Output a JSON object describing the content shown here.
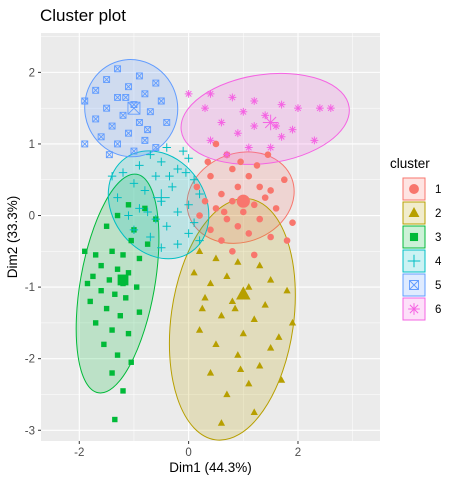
{
  "chart_data": {
    "type": "scatter",
    "title": "Cluster plot",
    "xlabel": "Dim1 (44.3%)",
    "ylabel": "Dim2 (33.3%)",
    "xlim": [
      -2.7,
      3.5
    ],
    "ylim": [
      -3.15,
      2.55
    ],
    "x_ticks": [
      -2,
      0,
      2
    ],
    "y_ticks": [
      2,
      1,
      0,
      -1,
      -2,
      -3
    ],
    "grid": true,
    "legend": {
      "title": "cluster",
      "position": "right"
    },
    "series": [
      {
        "name": "1",
        "marker": "circle",
        "color": "#F8766D",
        "fill": "#F8766D",
        "ellipse": {
          "cx": 0.95,
          "cy": 0.25,
          "rx": 1.0,
          "ry": 0.62,
          "angle": -20
        },
        "center": [
          1.0,
          0.2
        ],
        "points": [
          [
            0.5,
            1.0
          ],
          [
            0.7,
            0.85
          ],
          [
            0.8,
            0.65
          ],
          [
            0.4,
            0.55
          ],
          [
            1.1,
            0.55
          ],
          [
            0.9,
            0.4
          ],
          [
            1.3,
            0.4
          ],
          [
            1.5,
            0.35
          ],
          [
            0.6,
            0.3
          ],
          [
            1.4,
            0.25
          ],
          [
            0.3,
            0.2
          ],
          [
            0.8,
            0.2
          ],
          [
            1.2,
            0.15
          ],
          [
            1.6,
            0.1
          ],
          [
            0.5,
            0.1
          ],
          [
            1.0,
            0.05
          ],
          [
            0.2,
            0.0
          ],
          [
            0.7,
            -0.05
          ],
          [
            1.3,
            -0.05
          ],
          [
            1.9,
            -0.1
          ],
          [
            0.9,
            -0.15
          ],
          [
            0.4,
            -0.2
          ],
          [
            1.1,
            -0.25
          ],
          [
            1.5,
            -0.3
          ],
          [
            0.6,
            -0.35
          ],
          [
            1.8,
            -0.35
          ],
          [
            0.8,
            -0.5
          ],
          [
            1.2,
            -0.55
          ],
          [
            1.45,
            0.85
          ],
          [
            0.35,
            0.75
          ],
          [
            1.75,
            0.5
          ],
          [
            0.15,
            0.4
          ],
          [
            0.95,
            0.75
          ],
          [
            1.25,
            0.7
          ],
          [
            0.65,
            0.05
          ]
        ]
      },
      {
        "name": "2",
        "marker": "triangle",
        "color": "#B79F00",
        "fill": "#B79F00",
        "ellipse": {
          "cx": 0.8,
          "cy": -1.45,
          "rx": 1.12,
          "ry": 1.7,
          "angle": 8
        },
        "center": [
          1.0,
          -1.1
        ],
        "points": [
          [
            0.2,
            -0.5
          ],
          [
            0.5,
            -0.6
          ],
          [
            0.9,
            -0.65
          ],
          [
            1.3,
            -0.7
          ],
          [
            0.1,
            -0.8
          ],
          [
            0.7,
            -0.85
          ],
          [
            1.5,
            -0.9
          ],
          [
            0.4,
            -0.95
          ],
          [
            1.1,
            -1.0
          ],
          [
            1.8,
            -1.05
          ],
          [
            0.3,
            -1.15
          ],
          [
            0.8,
            -1.2
          ],
          [
            1.4,
            -1.25
          ],
          [
            0.6,
            -1.4
          ],
          [
            1.2,
            -1.45
          ],
          [
            1.9,
            -1.5
          ],
          [
            0.2,
            -1.6
          ],
          [
            1.0,
            -1.65
          ],
          [
            0.5,
            -1.8
          ],
          [
            1.5,
            -1.85
          ],
          [
            0.9,
            -1.95
          ],
          [
            1.3,
            -2.1
          ],
          [
            0.4,
            -2.2
          ],
          [
            1.1,
            -2.35
          ],
          [
            0.7,
            -2.5
          ],
          [
            1.7,
            -2.3
          ],
          [
            1.2,
            -2.75
          ],
          [
            0.6,
            -2.9
          ],
          [
            0.85,
            -1.3
          ],
          [
            1.65,
            -1.7
          ],
          [
            0.25,
            -1.3
          ],
          [
            0.95,
            -2.15
          ]
        ]
      },
      {
        "name": "3",
        "marker": "square",
        "color": "#00BA38",
        "fill": "#00BA38",
        "ellipse": {
          "cx": -1.3,
          "cy": -0.95,
          "rx": 0.68,
          "ry": 1.55,
          "angle": 10
        },
        "center": [
          -1.2,
          -0.9
        ],
        "points": [
          [
            -1.1,
            0.15
          ],
          [
            -0.8,
            0.1
          ],
          [
            -1.3,
            0.0
          ],
          [
            -0.6,
            -0.05
          ],
          [
            -1.5,
            -0.15
          ],
          [
            -1.0,
            -0.2
          ],
          [
            -1.9,
            -0.5
          ],
          [
            -1.7,
            -0.55
          ],
          [
            -1.4,
            -0.5
          ],
          [
            -1.2,
            -0.55
          ],
          [
            -0.9,
            -0.6
          ],
          [
            -1.6,
            -0.7
          ],
          [
            -1.3,
            -0.75
          ],
          [
            -1.1,
            -0.8
          ],
          [
            -1.75,
            -0.85
          ],
          [
            -1.45,
            -0.9
          ],
          [
            -1.2,
            -0.95
          ],
          [
            -0.95,
            -1.0
          ],
          [
            -1.6,
            -1.05
          ],
          [
            -1.35,
            -1.1
          ],
          [
            -1.15,
            -1.15
          ],
          [
            -1.8,
            -1.2
          ],
          [
            -1.5,
            -1.3
          ],
          [
            -1.25,
            -1.4
          ],
          [
            -1.7,
            -1.5
          ],
          [
            -1.4,
            -1.6
          ],
          [
            -1.1,
            -1.65
          ],
          [
            -1.55,
            -1.8
          ],
          [
            -1.3,
            -1.95
          ],
          [
            -1.05,
            -2.05
          ],
          [
            -1.4,
            -2.2
          ],
          [
            -1.2,
            -2.45
          ],
          [
            -1.35,
            -2.85
          ],
          [
            -0.75,
            -0.4
          ],
          [
            -1.05,
            -0.35
          ],
          [
            -1.85,
            -0.95
          ],
          [
            -0.9,
            -1.35
          ]
        ]
      },
      {
        "name": "4",
        "marker": "plus",
        "color": "#00BFC4",
        "fill": "#00BFC4",
        "ellipse": {
          "cx": -0.55,
          "cy": 0.15,
          "rx": 0.85,
          "ry": 0.8,
          "angle": -35
        },
        "center": [
          -0.5,
          0.25
        ],
        "points": [
          [
            -0.4,
            0.95
          ],
          [
            -0.1,
            0.9
          ],
          [
            -0.7,
            0.85
          ],
          [
            0.0,
            0.8
          ],
          [
            -0.5,
            0.75
          ],
          [
            -0.9,
            0.7
          ],
          [
            -0.2,
            0.65
          ],
          [
            -1.2,
            0.6
          ],
          [
            -0.6,
            0.55
          ],
          [
            0.1,
            0.5
          ],
          [
            -1.0,
            0.45
          ],
          [
            -0.3,
            0.4
          ],
          [
            -0.8,
            0.35
          ],
          [
            0.2,
            0.3
          ],
          [
            -1.3,
            0.25
          ],
          [
            -0.5,
            0.2
          ],
          [
            0.0,
            0.15
          ],
          [
            -0.9,
            0.1
          ],
          [
            -0.2,
            0.05
          ],
          [
            -1.1,
            0.0
          ],
          [
            -0.6,
            -0.05
          ],
          [
            0.1,
            -0.1
          ],
          [
            -0.4,
            -0.15
          ],
          [
            -1.0,
            -0.2
          ],
          [
            0.0,
            -0.25
          ],
          [
            -0.7,
            -0.3
          ],
          [
            -0.2,
            -0.4
          ],
          [
            -0.5,
            -0.45
          ],
          [
            0.2,
            -0.35
          ],
          [
            -1.4,
            0.55
          ],
          [
            -0.05,
            0.6
          ],
          [
            -0.75,
            0.05
          ],
          [
            -0.35,
            0.55
          ]
        ]
      },
      {
        "name": "5",
        "marker": "squarecross",
        "color": "#619CFF",
        "fill": "#619CFF",
        "ellipse": {
          "cx": -1.05,
          "cy": 1.5,
          "rx": 0.85,
          "ry": 0.68,
          "angle": -10
        },
        "center": [
          -1.0,
          1.5
        ],
        "points": [
          [
            -1.3,
            2.05
          ],
          [
            -0.9,
            1.95
          ],
          [
            -1.5,
            1.9
          ],
          [
            -0.6,
            1.85
          ],
          [
            -1.1,
            1.8
          ],
          [
            -1.7,
            1.75
          ],
          [
            -0.8,
            1.7
          ],
          [
            -1.3,
            1.65
          ],
          [
            -1.9,
            1.6
          ],
          [
            -1.0,
            1.55
          ],
          [
            -0.5,
            1.6
          ],
          [
            -1.5,
            1.5
          ],
          [
            -0.7,
            1.45
          ],
          [
            -1.2,
            1.4
          ],
          [
            -1.7,
            1.35
          ],
          [
            -0.9,
            1.3
          ],
          [
            -1.4,
            1.25
          ],
          [
            -0.4,
            1.3
          ],
          [
            -1.1,
            1.15
          ],
          [
            -1.6,
            1.1
          ],
          [
            -0.8,
            1.05
          ],
          [
            -1.3,
            1.0
          ],
          [
            -1.9,
            1.0
          ],
          [
            -1.0,
            0.9
          ],
          [
            -0.6,
            0.95
          ],
          [
            -1.45,
            0.85
          ],
          [
            -1.15,
            1.65
          ],
          [
            -0.75,
            1.2
          ]
        ]
      },
      {
        "name": "6",
        "marker": "star",
        "color": "#F564E3",
        "fill": "#F564E3",
        "ellipse": {
          "cx": 1.4,
          "cy": 1.35,
          "rx": 1.55,
          "ry": 0.62,
          "angle": -8
        },
        "center": [
          1.5,
          1.3
        ],
        "points": [
          [
            0.0,
            1.7
          ],
          [
            0.4,
            1.7
          ],
          [
            0.8,
            1.65
          ],
          [
            1.2,
            1.6
          ],
          [
            1.7,
            1.55
          ],
          [
            0.3,
            1.5
          ],
          [
            1.0,
            1.45
          ],
          [
            1.4,
            1.4
          ],
          [
            2.0,
            1.5
          ],
          [
            2.4,
            1.5
          ],
          [
            2.6,
            1.5
          ],
          [
            0.6,
            1.3
          ],
          [
            1.2,
            1.25
          ],
          [
            1.6,
            1.25
          ],
          [
            0.9,
            1.15
          ],
          [
            1.7,
            1.1
          ],
          [
            2.3,
            1.05
          ],
          [
            0.4,
            1.05
          ],
          [
            1.1,
            0.95
          ],
          [
            1.5,
            0.95
          ],
          [
            0.7,
            0.85
          ],
          [
            1.9,
            1.2
          ]
        ]
      }
    ]
  }
}
